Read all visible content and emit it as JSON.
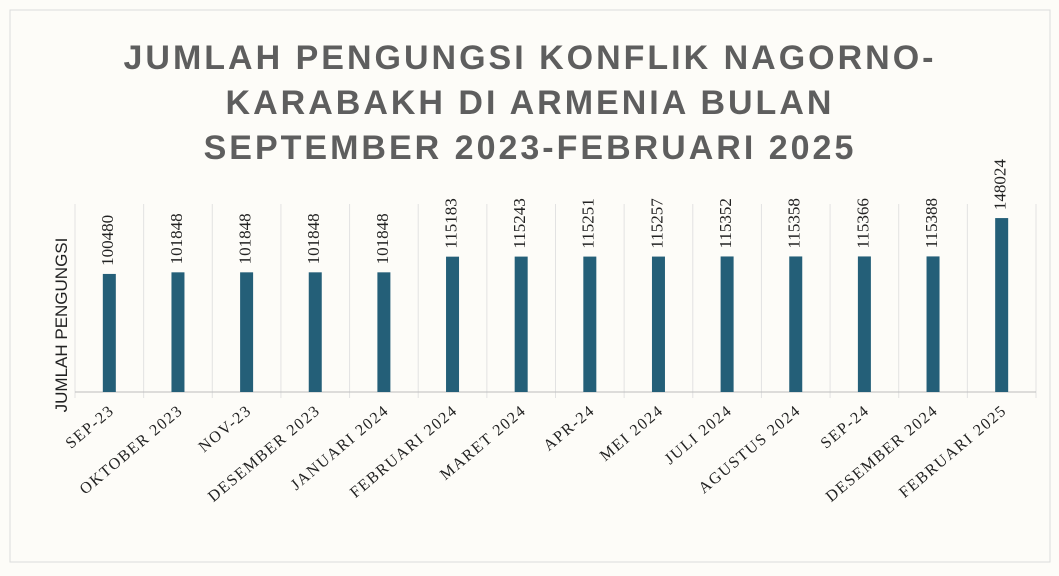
{
  "chart_data": {
    "type": "bar",
    "title": "JUMLAH PENGUNGSI KONFLIK NAGORNO-KARABAKH DI ARMENIA BULAN SEPTEMBER 2023-FEBRUARI 2025",
    "y_label": "JUMLAH PENGUNGSI",
    "categories": [
      "SEP-23",
      "OKTOBER 2023",
      "NOV-23",
      "DESEMBER 2023",
      "JANUARI 2024",
      "FEBRUARI 2024",
      "MARET 2024",
      "APR-24",
      "MEI 2024",
      "JULI 2024",
      "AGUSTUS 2024",
      "SEP-24",
      "DESEMBER 2024",
      "FEBRUARI 2025"
    ],
    "values": [
      100480,
      101848,
      101848,
      101848,
      101848,
      115183,
      115243,
      115251,
      115257,
      115352,
      115358,
      115366,
      115388,
      148024
    ],
    "color": "#245f78",
    "ylim": [
      0,
      160000
    ],
    "grid": true
  }
}
